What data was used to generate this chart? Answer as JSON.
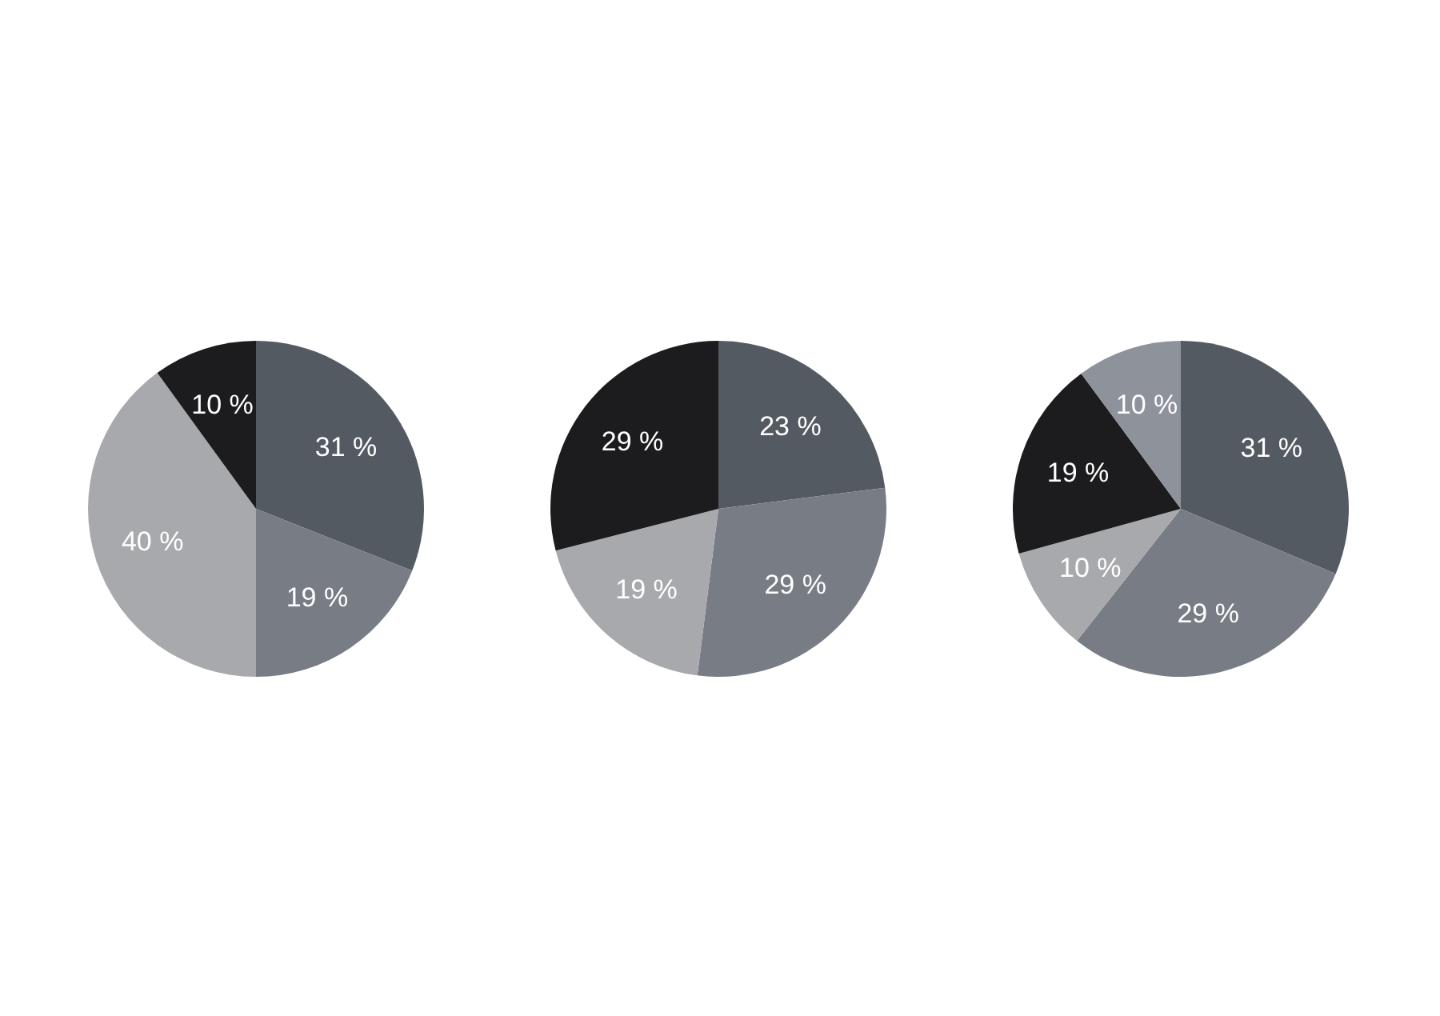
{
  "chart_data": [
    {
      "type": "pie",
      "categories": [
        null,
        null,
        null,
        null
      ],
      "values": [
        31,
        19,
        40,
        10
      ],
      "colors": [
        "#545a62",
        "#777c85",
        "#a8a9ad",
        "#1c1c1e"
      ],
      "value_labels": [
        "31 %",
        "19 %",
        "40 %",
        "10 %"
      ],
      "legend": false
    },
    {
      "type": "pie",
      "categories": [
        null,
        null,
        null,
        null
      ],
      "values": [
        23,
        29,
        19,
        29
      ],
      "colors": [
        "#545a62",
        "#777c85",
        "#a8a9ad",
        "#1c1c1e"
      ],
      "value_labels": [
        "23 %",
        "29 %",
        "19 %",
        "29 %"
      ],
      "legend": false
    },
    {
      "type": "pie",
      "categories": [
        null,
        null,
        null,
        null,
        null
      ],
      "values": [
        31,
        29,
        10,
        19,
        10
      ],
      "colors": [
        "#545a62",
        "#777c85",
        "#a8a9ad",
        "#1c1c1e",
        "#8e929b"
      ],
      "value_labels": [
        "31 %",
        "29 %",
        "10 %",
        "19 %",
        "10 %"
      ],
      "legend": false
    }
  ]
}
